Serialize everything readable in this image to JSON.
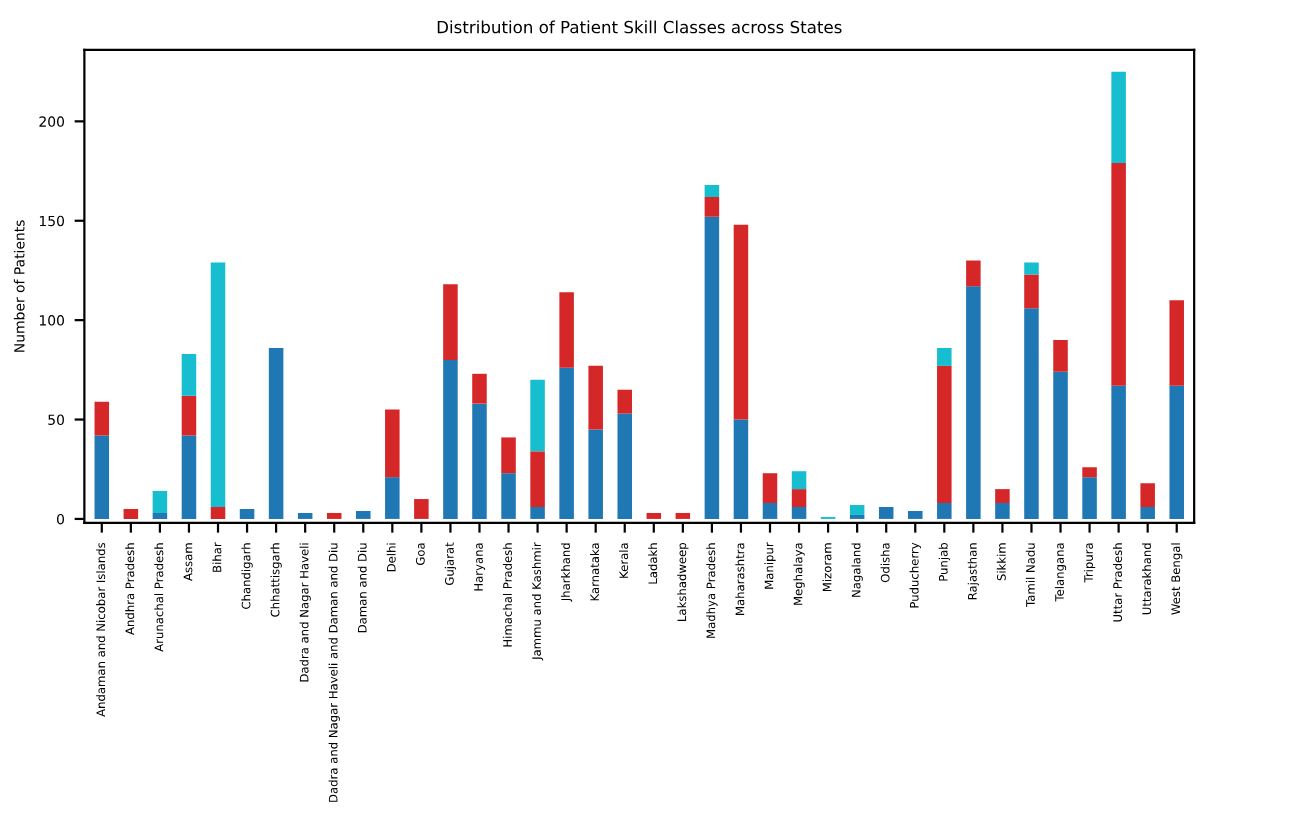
{
  "chart_data": {
    "type": "bar",
    "stacked": true,
    "title": "Distribution of Patient Skill Classes across States",
    "ylabel": "Number of Patients",
    "categories": [
      "Andaman and Nicobar Islands",
      "Andhra Pradesh",
      "Arunachal Pradesh",
      "Assam",
      "Bihar",
      "Chandigarh",
      "Chhattisgarh",
      "Dadra and Nagar Haveli",
      "Dadra and Nagar Haveli and Daman and Diu",
      "Daman and Diu",
      "Delhi",
      "Goa",
      "Gujarat",
      "Haryana",
      "Himachal Pradesh",
      "Jammu and Kashmir",
      "Jharkhand",
      "Karnataka",
      "Kerala",
      "Ladakh",
      "Lakshadweep",
      "Madhya Pradesh",
      "Maharashtra",
      "Manipur",
      "Meghalaya",
      "Mizoram",
      "Nagaland",
      "Odisha",
      "Puducherry",
      "Punjab",
      "Rajasthan",
      "Sikkim",
      "Tamil Nadu",
      "Telangana",
      "Tripura",
      "Uttar Pradesh",
      "Uttarakhand",
      "West Bengal"
    ],
    "series": [
      {
        "color": "#1f77b4",
        "values": [
          42,
          0,
          3,
          42,
          0,
          5,
          86,
          3,
          0,
          4,
          21,
          0,
          80,
          58,
          23,
          6,
          76,
          45,
          53,
          0,
          0,
          152,
          50,
          8,
          6,
          0,
          2,
          6,
          4,
          8,
          117,
          8,
          106,
          74,
          21,
          67,
          6,
          67
        ]
      },
      {
        "color": "#d62728",
        "values": [
          17,
          5,
          0,
          20,
          6,
          0,
          0,
          0,
          3,
          0,
          34,
          10,
          38,
          15,
          18,
          28,
          38,
          32,
          12,
          3,
          3,
          10,
          98,
          15,
          9,
          0,
          0,
          0,
          0,
          69,
          13,
          7,
          17,
          16,
          5,
          112,
          12,
          43
        ]
      },
      {
        "color": "#17becf",
        "values": [
          0,
          0,
          11,
          21,
          123,
          0,
          0,
          0,
          0,
          0,
          0,
          0,
          0,
          0,
          0,
          36,
          0,
          0,
          0,
          0,
          0,
          6,
          0,
          0,
          9,
          1,
          5,
          0,
          0,
          9,
          0,
          0,
          6,
          0,
          0,
          46,
          0,
          0
        ]
      }
    ],
    "ylim": [
      -2,
      236
    ],
    "yticks": [
      0,
      50,
      100,
      150,
      200
    ],
    "grid": false
  }
}
